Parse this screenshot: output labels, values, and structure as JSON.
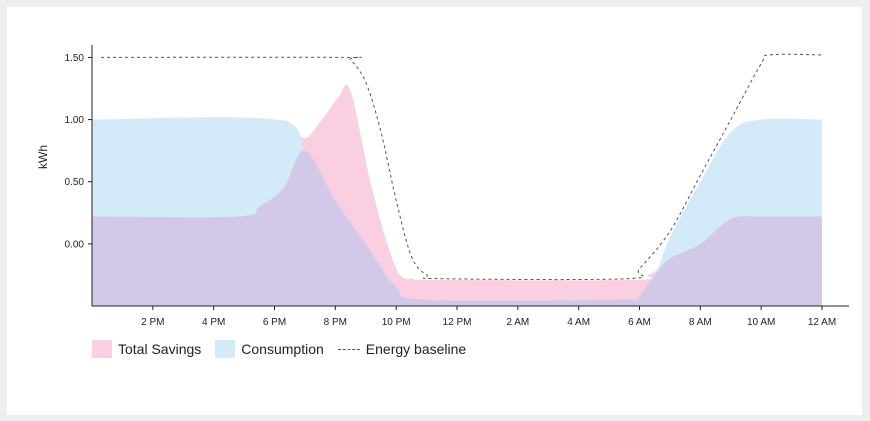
{
  "chart_data": {
    "type": "area",
    "ylabel": "kWh",
    "y_ticks": [
      {
        "label": "1.50",
        "value": 1.5
      },
      {
        "label": "1.00",
        "value": 1.0
      },
      {
        "label": "0.50",
        "value": 0.5
      },
      {
        "label": "0.00",
        "value": 0.0
      }
    ],
    "ylim": [
      -0.5,
      1.6
    ],
    "xlim": [
      0,
      24
    ],
    "x_ticks": [
      {
        "label": "2 PM",
        "value": 2
      },
      {
        "label": "4 PM",
        "value": 4
      },
      {
        "label": "6 PM",
        "value": 6
      },
      {
        "label": "8 PM",
        "value": 8
      },
      {
        "label": "10 PM",
        "value": 10
      },
      {
        "label": "12 PM",
        "value": 12
      },
      {
        "label": "2 AM",
        "value": 14
      },
      {
        "label": "4 AM",
        "value": 16
      },
      {
        "label": "6 AM",
        "value": 18
      },
      {
        "label": "8 AM",
        "value": 20
      },
      {
        "label": "10 AM",
        "value": 22
      },
      {
        "label": "12 AM",
        "value": 24
      }
    ],
    "series": [
      {
        "name": "Total Savings",
        "color": "#f9cfe1",
        "points": [
          [
            0,
            1.0
          ],
          [
            5.8,
            1.0
          ],
          [
            6.5,
            0.95
          ],
          [
            7.0,
            0.85
          ],
          [
            7.5,
            0.98
          ],
          [
            8.1,
            1.18
          ],
          [
            8.5,
            1.23
          ],
          [
            9.2,
            0.45
          ],
          [
            10.0,
            -0.2
          ],
          [
            10.6,
            -0.28
          ],
          [
            11.0,
            -0.29
          ],
          [
            17.8,
            -0.29
          ],
          [
            18.3,
            -0.25
          ],
          [
            19.0,
            -0.15
          ],
          [
            20.0,
            -0.05
          ],
          [
            21.0,
            0.18
          ],
          [
            22.0,
            0.22
          ],
          [
            24.0,
            0.22
          ]
        ]
      },
      {
        "name": "Consumption",
        "color": "#d3ebf9",
        "points": [
          [
            0,
            1.0
          ],
          [
            6.0,
            1.0
          ],
          [
            7.0,
            0.75
          ],
          [
            8.0,
            0.35
          ],
          [
            9.0,
            0.0
          ],
          [
            10.0,
            -0.35
          ],
          [
            11.0,
            -0.45
          ],
          [
            17.5,
            -0.45
          ],
          [
            17.9,
            -0.45
          ],
          [
            18.5,
            -0.25
          ],
          [
            19.0,
            0.05
          ],
          [
            20.0,
            0.5
          ],
          [
            21.0,
            0.9
          ],
          [
            22.0,
            1.0
          ],
          [
            24.0,
            1.0
          ]
        ]
      },
      {
        "name": "",
        "color": "#d2c9e8",
        "points": [
          [
            0,
            0.22
          ],
          [
            4.8,
            0.22
          ],
          [
            5.5,
            0.3
          ],
          [
            6.3,
            0.45
          ],
          [
            7.0,
            0.75
          ],
          [
            8.0,
            0.35
          ],
          [
            9.0,
            0.0
          ],
          [
            10.0,
            -0.35
          ],
          [
            11.0,
            -0.45
          ],
          [
            17.5,
            -0.45
          ],
          [
            17.9,
            -0.45
          ],
          [
            18.5,
            -0.25
          ],
          [
            19.0,
            -0.12
          ],
          [
            20.0,
            0.0
          ],
          [
            21.0,
            0.2
          ],
          [
            22.0,
            0.22
          ],
          [
            24.0,
            0.22
          ]
        ]
      },
      {
        "name": "Energy baseline",
        "color": "#555555",
        "style": "dashed",
        "points": [
          [
            0.3,
            1.5
          ],
          [
            8.2,
            1.5
          ],
          [
            8.5,
            1.48
          ],
          [
            9.0,
            1.3
          ],
          [
            9.5,
            0.9
          ],
          [
            10.0,
            0.35
          ],
          [
            10.5,
            -0.1
          ],
          [
            11.0,
            -0.25
          ],
          [
            11.5,
            -0.28
          ],
          [
            17.6,
            -0.28
          ],
          [
            18.0,
            -0.2
          ],
          [
            19.0,
            0.1
          ],
          [
            20.0,
            0.55
          ],
          [
            21.0,
            1.0
          ],
          [
            22.0,
            1.45
          ],
          [
            22.3,
            1.52
          ],
          [
            24.0,
            1.52
          ]
        ]
      }
    ],
    "legend": [
      {
        "label": "Total Savings",
        "color": "#f9cfe1",
        "kind": "area"
      },
      {
        "label": "Consumption",
        "color": "#d3ebf9",
        "kind": "area"
      },
      {
        "label": "Energy baseline",
        "color": "#555555",
        "kind": "dashed-line"
      }
    ],
    "grid": false,
    "legend_position": "bottom-left"
  }
}
